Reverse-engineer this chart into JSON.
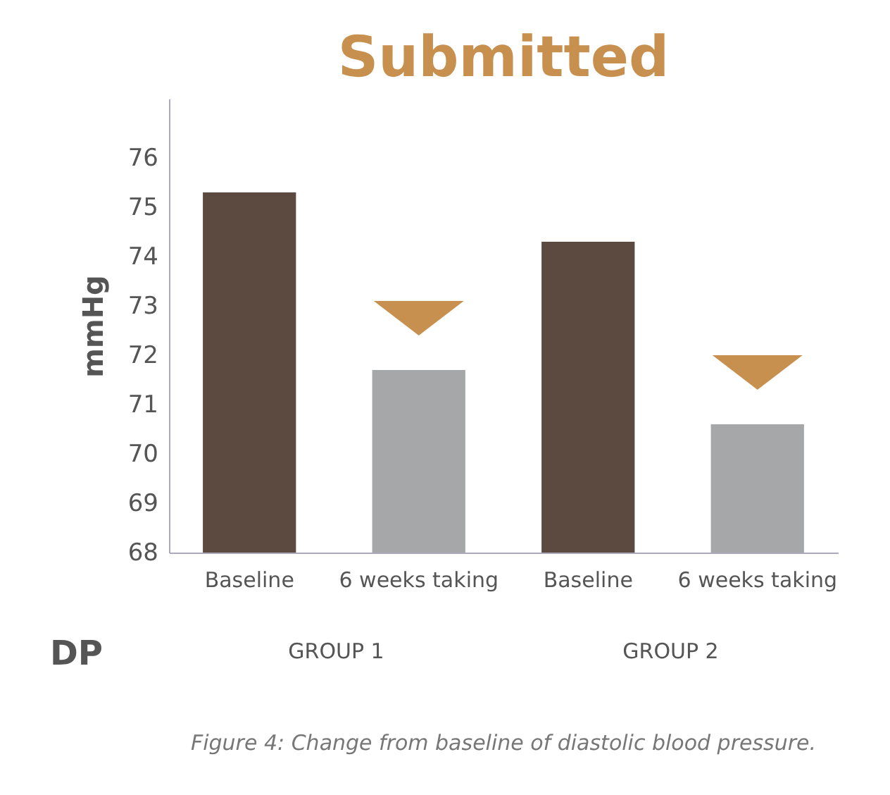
{
  "chart_data": {
    "type": "bar",
    "title": "Submitted",
    "categories": [
      "Baseline",
      "6 weeks taking",
      "Baseline",
      "6 weeks taking"
    ],
    "values": [
      75.3,
      71.7,
      74.3,
      70.6
    ],
    "colors": [
      "#5c4a41",
      "#a6a7a9",
      "#5c4a41",
      "#a6a7a9"
    ],
    "ylabel": "mmHg",
    "xlabel": "DP",
    "ylim": [
      68,
      77.2
    ],
    "yticks": [
      68,
      69,
      70,
      71,
      72,
      73,
      74,
      75,
      76
    ],
    "grid": false,
    "annotations": [
      "GROUP 1",
      "GROUP 2",
      "Figure 4: Change from baseline of diastolic blood pressure."
    ]
  }
}
